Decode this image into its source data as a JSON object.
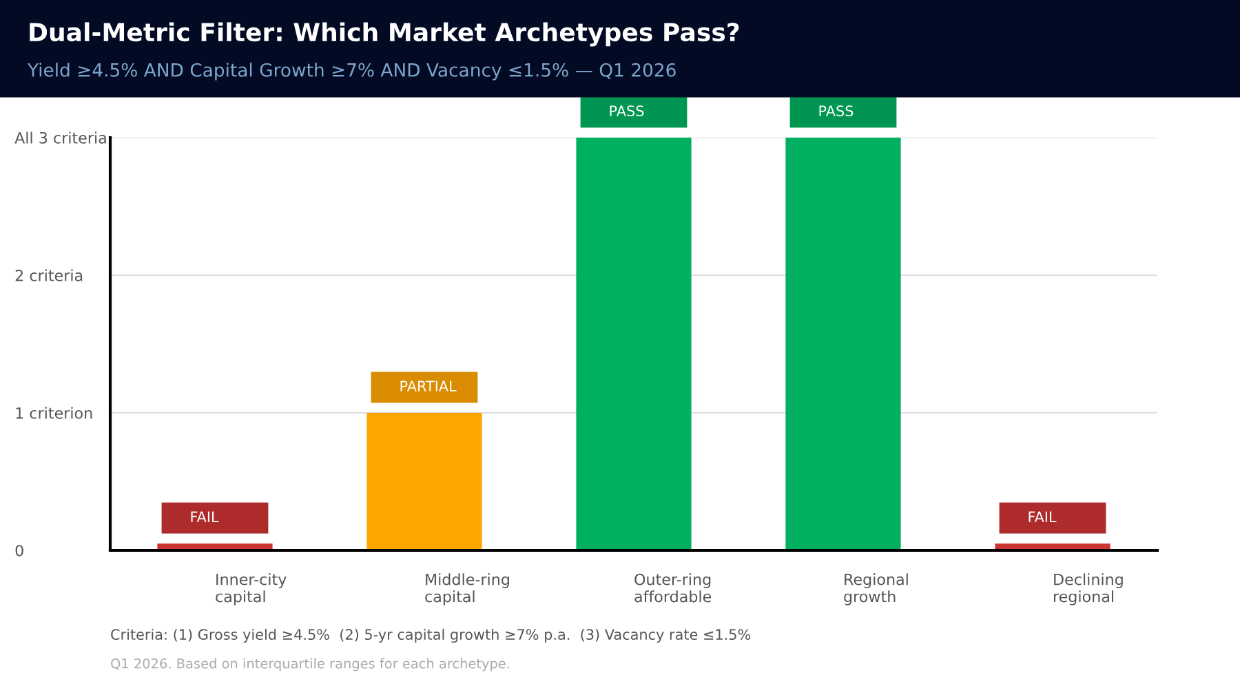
{
  "chart_data": {
    "type": "bar",
    "title": "Dual-Metric Filter: Which Market Archetypes Pass?",
    "subtitle": "Yield ≥4.5% AND Capital Growth ≥7% AND Vacancy ≤1.5% — Q1 2026",
    "categories": [
      "Inner-city\ncapital",
      "Middle-ring\ncapital",
      "Outer-ring\naffordable",
      "Regional\ngrowth",
      "Declining\nregional"
    ],
    "values": [
      0.05,
      1,
      3,
      3,
      0.05
    ],
    "colors": [
      "#cc3333",
      "#ffa500",
      "#00b060",
      "#00b060",
      "#cc3333"
    ],
    "value_labels": [
      "FAIL",
      "PARTIAL",
      "PASS",
      "PASS",
      "FAIL"
    ],
    "ylim": [
      0,
      3
    ],
    "yticks": [
      0,
      {
        "value": 1,
        "label": "1 criterion"
      },
      {
        "value": 2,
        "label": "2 criteria"
      },
      {
        "value": 3,
        "label": "All 3 criteria"
      }
    ],
    "grid": "y",
    "annotations": [
      "Criteria: (1) Gross yield ≥4.5%  (2) 5-yr capital growth ≥7% p.a.  (3) Vacancy rate ≤1.5%",
      "Q1 2026. Based on interquartile ranges for each archetype."
    ]
  }
}
